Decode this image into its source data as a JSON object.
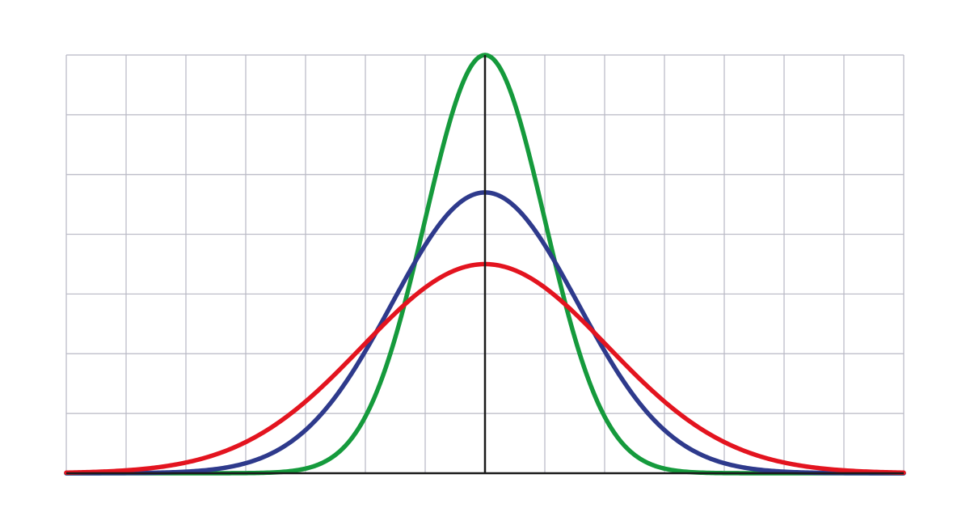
{
  "chart_data": {
    "type": "line",
    "title": "",
    "xlabel": "",
    "ylabel": "",
    "xlim": [
      -7,
      7
    ],
    "ylim": [
      0,
      7
    ],
    "grid": true,
    "legend": "none",
    "x_grid_step": 1,
    "y_grid_step": 1,
    "series": [
      {
        "color": "#159a3c",
        "curve": "normal",
        "mean": 0,
        "sd": 1.0,
        "peak": 7.0
      },
      {
        "color": "#2e3a8c",
        "curve": "normal",
        "mean": 0,
        "sd": 1.55,
        "peak": 4.7
      },
      {
        "color": "#e3141f",
        "curve": "normal",
        "mean": 0,
        "sd": 2.05,
        "peak": 3.5
      }
    ]
  }
}
